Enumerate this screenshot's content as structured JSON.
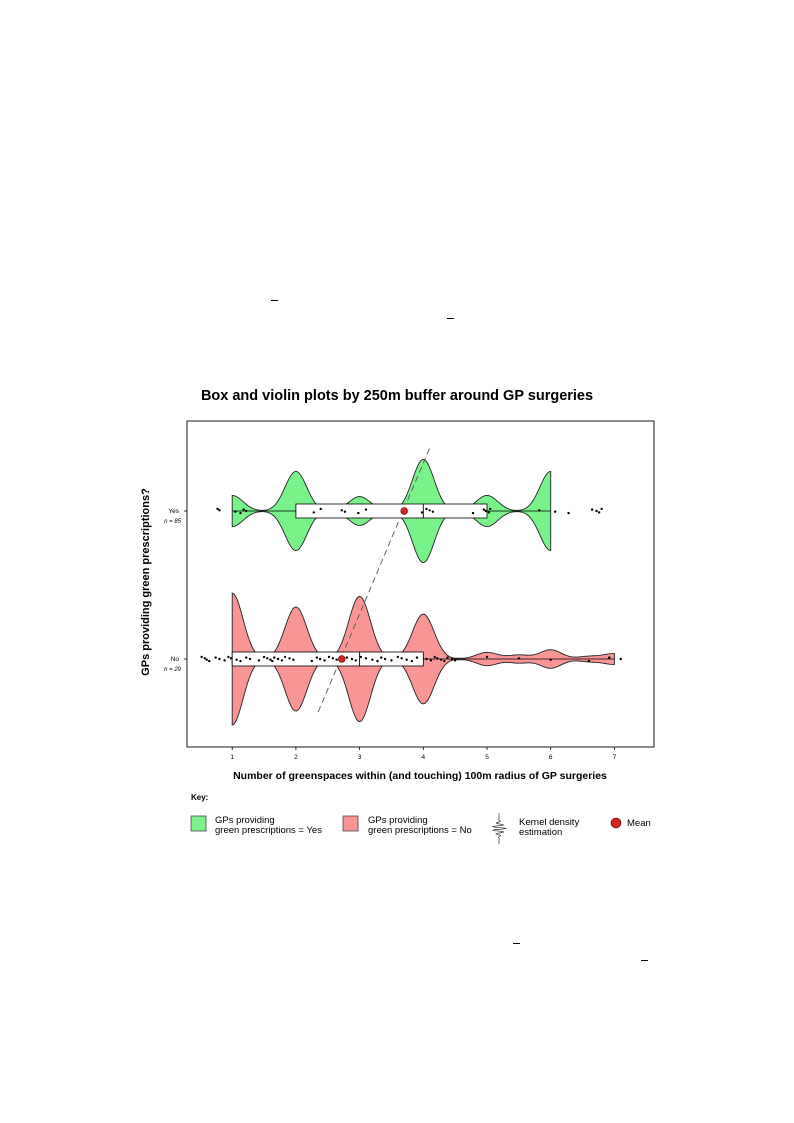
{
  "chart_data": {
    "type": "box-violin",
    "title": "Box and violin plots by 250m buffer around GP surgeries",
    "xlabel": "Number of greenspaces within (and touching) 100m radius of GP surgeries",
    "ylabel": "GPs providing green prescriptions?",
    "xlim": [
      0.35,
      7.55
    ],
    "x_ticks": [
      "1",
      "2",
      "3",
      "4",
      "5",
      "6",
      "7"
    ],
    "grid": false,
    "categories": [
      {
        "label": "Yes",
        "n_label": "n = 85",
        "color": "#7af28a",
        "box": {
          "q1": 2,
          "median": 4,
          "q3": 5,
          "min": 1,
          "max": 6
        },
        "mean": 3.7,
        "violin_range": [
          1,
          6
        ],
        "density_peaks": [
          {
            "x": 1,
            "h": 0.26
          },
          {
            "x": 2,
            "h": 0.66
          },
          {
            "x": 3,
            "h": 0.24
          },
          {
            "x": 4,
            "h": 0.86
          },
          {
            "x": 5,
            "h": 0.26
          },
          {
            "x": 6,
            "h": 0.66
          }
        ],
        "points": [
          0.77,
          0.8,
          1.05,
          1.13,
          1.18,
          1.22,
          2.28,
          2.39,
          2.72,
          2.77,
          2.98,
          3.1,
          3.7,
          3.98,
          4.05,
          4.1,
          4.15,
          4.78,
          4.95,
          4.98,
          5.03,
          5.05,
          5.82,
          6.07,
          6.28,
          6.65,
          6.72,
          6.76,
          6.8
        ]
      },
      {
        "label": "No",
        "n_label": "n = 29",
        "color": "#f99595",
        "box": {
          "q1": 1,
          "median": 3,
          "q3": 4,
          "min": 1,
          "max": 7
        },
        "mean": 2.72,
        "violin_range": [
          1,
          7
        ],
        "density_peaks": [
          {
            "x": 1,
            "h": 1.0
          },
          {
            "x": 2,
            "h": 0.79
          },
          {
            "x": 3,
            "h": 0.95
          },
          {
            "x": 4,
            "h": 0.68
          },
          {
            "x": 5,
            "h": 0.1
          },
          {
            "x": 5.5,
            "h": 0.06
          },
          {
            "x": 6,
            "h": 0.14
          },
          {
            "x": 6.6,
            "h": 0.04
          },
          {
            "x": 7,
            "h": 0.08
          }
        ],
        "points": [
          0.52,
          0.57,
          0.6,
          0.64,
          0.74,
          0.8,
          0.88,
          0.94,
          0.98,
          1.07,
          1.13,
          1.22,
          1.28,
          1.42,
          1.5,
          1.55,
          1.6,
          1.63,
          1.66,
          1.72,
          1.78,
          1.83,
          1.9,
          1.96,
          2.25,
          2.33,
          2.38,
          2.45,
          2.52,
          2.58,
          2.64,
          2.72,
          2.8,
          2.88,
          2.94,
          3.02,
          3.1,
          3.2,
          3.28,
          3.34,
          3.4,
          3.5,
          3.6,
          3.66,
          3.74,
          3.82,
          3.9,
          4.05,
          4.12,
          4.18,
          4.22,
          4.28,
          4.33,
          4.38,
          4.45,
          4.5,
          5.0,
          5.5,
          6.0,
          6.6,
          6.92,
          7.1
        ]
      }
    ],
    "trend_line": {
      "from": {
        "x": 2.35,
        "category": "No"
      },
      "to": {
        "x": 4.1,
        "category": "Yes"
      }
    }
  },
  "key": {
    "title": "Key:",
    "items": [
      {
        "label_line1": "GPs providing",
        "label_line2": "green prescriptions = Yes",
        "color": "#7af28a"
      },
      {
        "label_line1": "GPs providing",
        "label_line2": "green prescriptions = No",
        "color": "#f99595"
      },
      {
        "label_line1": "Kernel density",
        "label_line2": "estimation"
      },
      {
        "label_line1": "Mean",
        "color": "#d62323"
      }
    ]
  }
}
